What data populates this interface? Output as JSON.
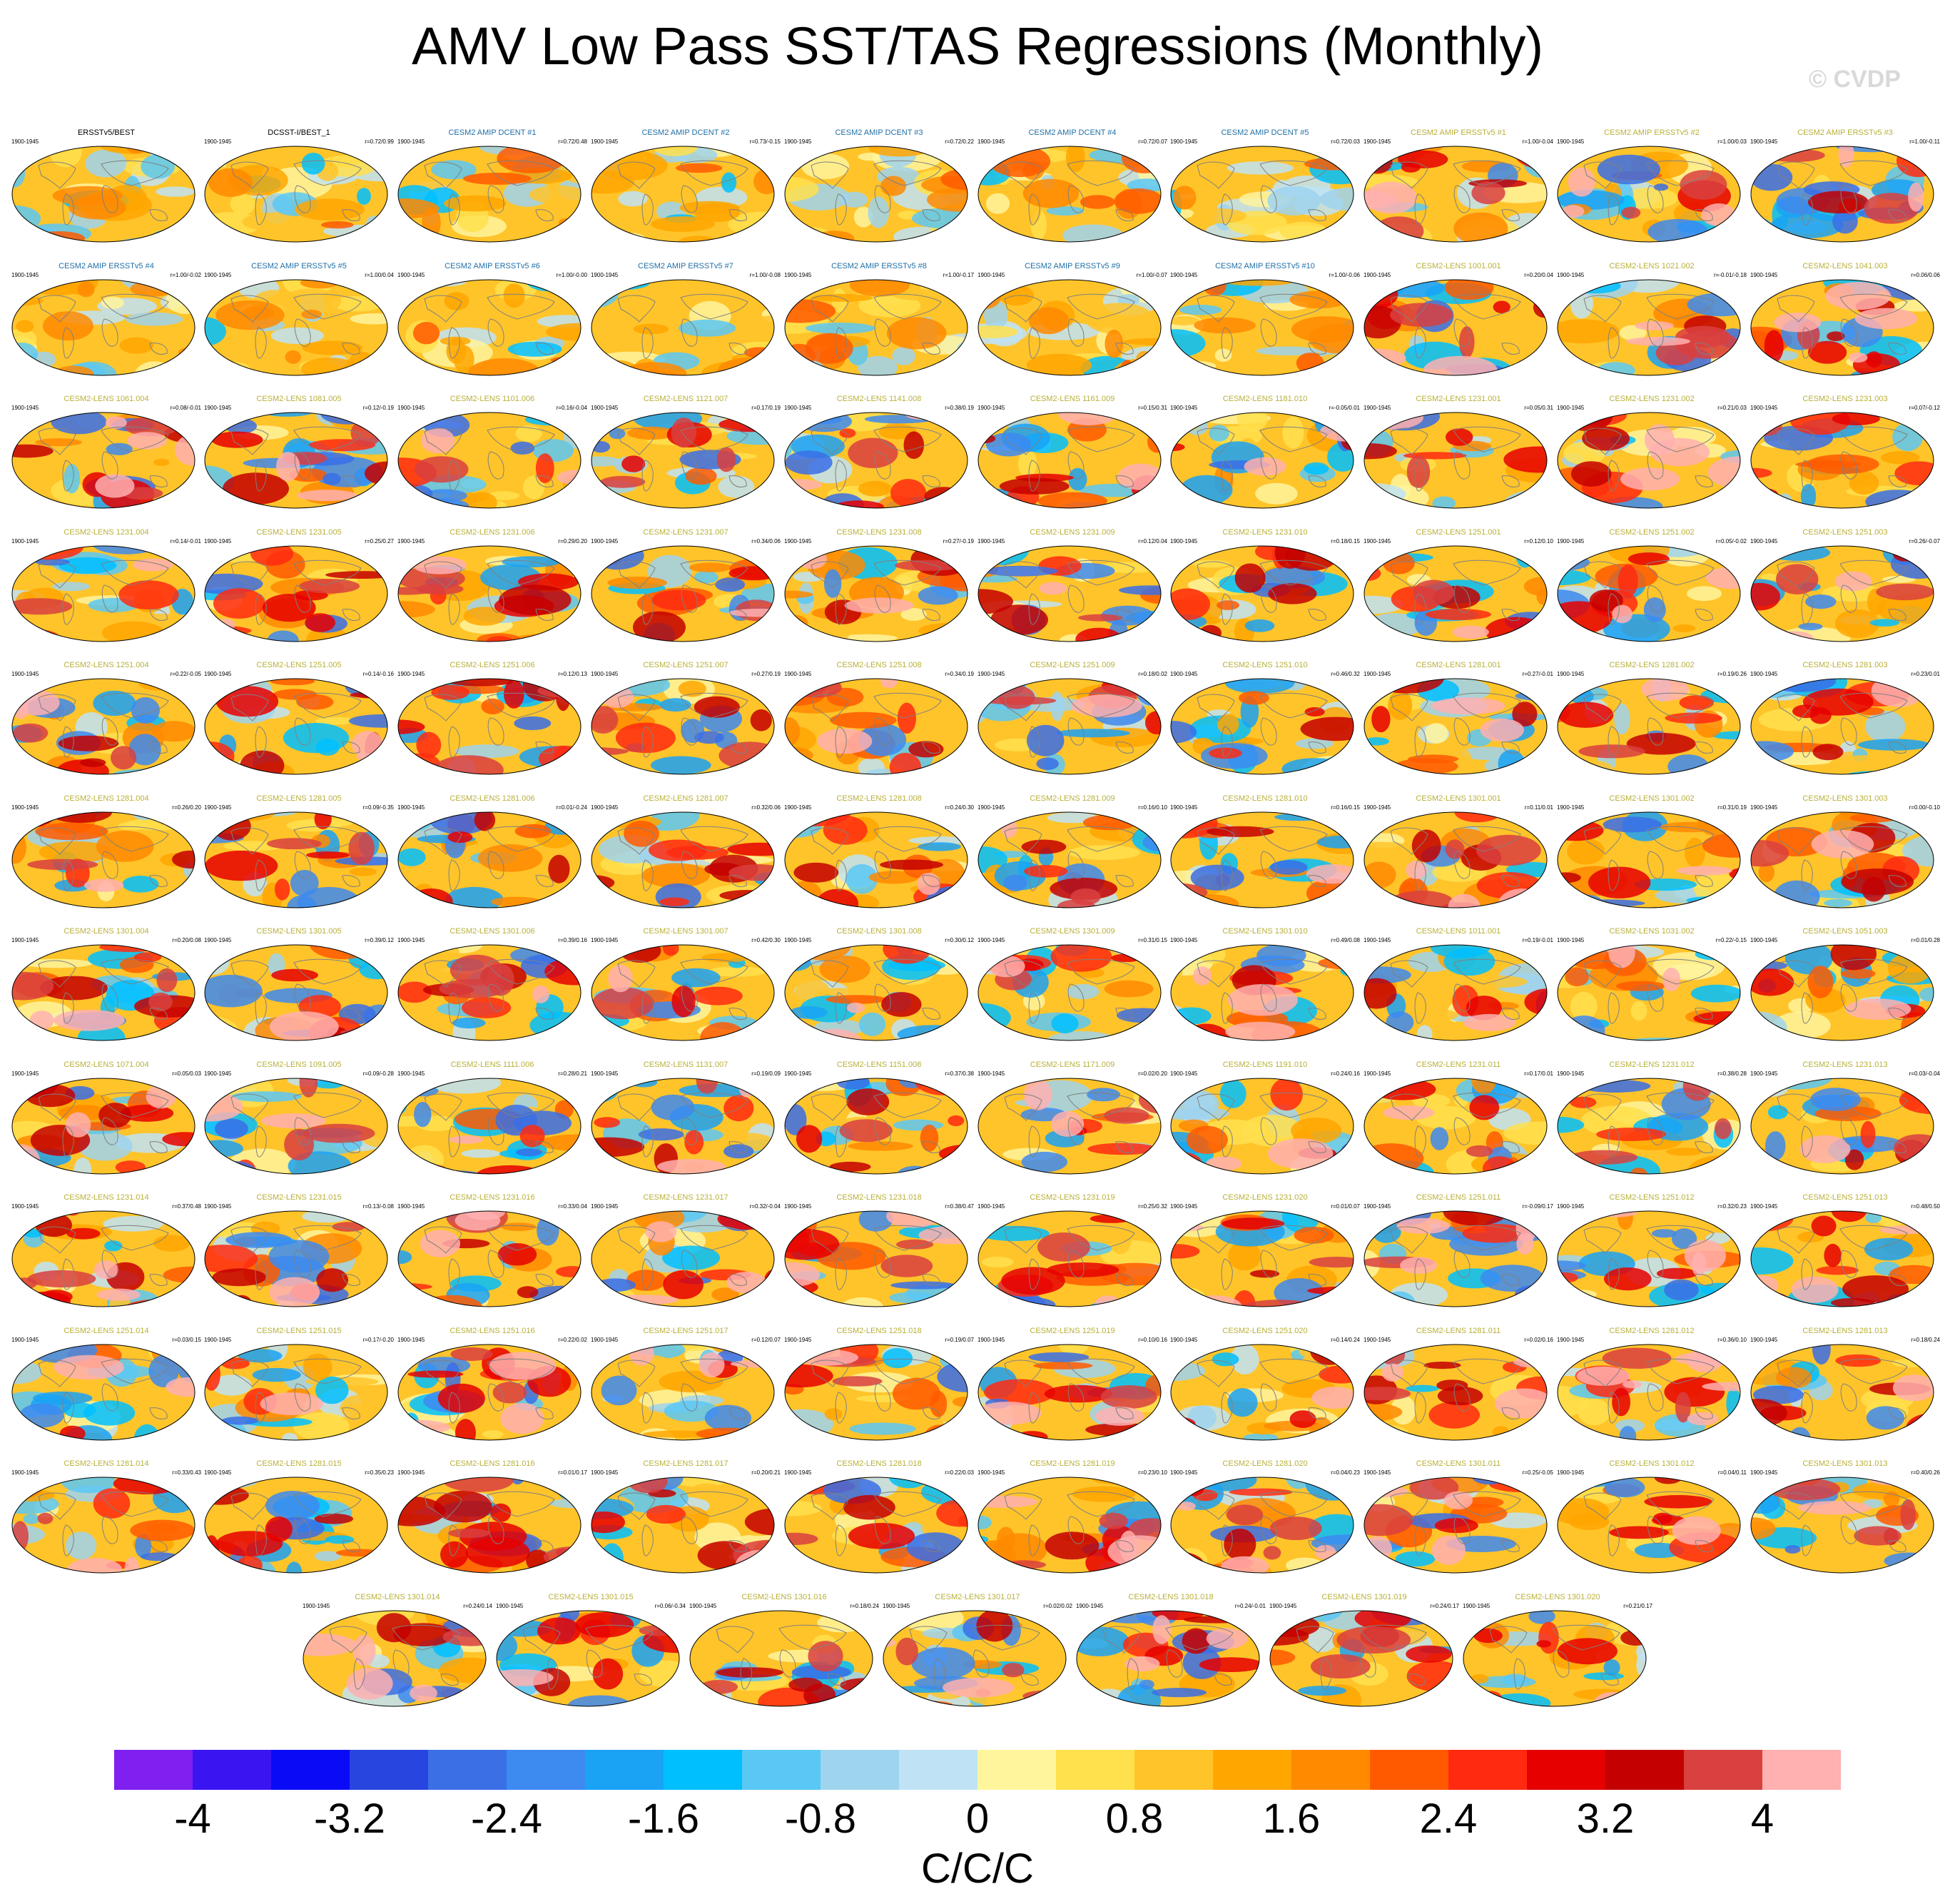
{
  "chart_data": {
    "type": "heatmap",
    "title": "AMV Low Pass SST/TAS Regressions (Monthly)",
    "watermark": "© CVDP",
    "units": "C/C/C",
    "colorbar": {
      "range": [
        -4.4,
        4.4
      ],
      "step": 0.4,
      "tick_labels": [
        "-4",
        "-3.2",
        "-2.4",
        "-1.6",
        "-0.8",
        "0",
        "0.8",
        "1.6",
        "2.4",
        "3.2",
        "4"
      ],
      "tick_values": [
        -4,
        -3.2,
        -2.4,
        -1.6,
        -0.8,
        0,
        0.8,
        1.6,
        2.4,
        3.2,
        4
      ],
      "colors": [
        "#7f1ff0",
        "#3b14f2",
        "#0a0af7",
        "#2845e0",
        "#3a6fe6",
        "#3d8af0",
        "#1aa2f5",
        "#00bfff",
        "#5ac8f5",
        "#9fd4ee",
        "#bfe3f5",
        "#fff59d",
        "#ffe14d",
        "#ffc42a",
        "#ffa600",
        "#ff8a00",
        "#ff5a00",
        "#ff2a10",
        "#e60000",
        "#c40000",
        "#d94040",
        "#ffb0b0"
      ]
    },
    "period": "1900-1945",
    "panel_colors": {
      "obs": "#000000",
      "amip": "#1f6fa6",
      "lens": "#b8b038"
    },
    "panels": [
      {
        "label": "ERSSTv5/BEST",
        "stat": "",
        "group": "obs"
      },
      {
        "label": "DCSST-I/BEST_1",
        "stat": "r=0.72/0.99",
        "group": "obs"
      },
      {
        "label": "CESM2 AMIP DCENT #1",
        "stat": "r=0.72/0.48",
        "group": "amip"
      },
      {
        "label": "CESM2 AMIP DCENT #2",
        "stat": "r=0.73/-0.15",
        "group": "amip"
      },
      {
        "label": "CESM2 AMIP DCENT #3",
        "stat": "r=0.72/0.22",
        "group": "amip"
      },
      {
        "label": "CESM2 AMIP DCENT #4",
        "stat": "r=0.72/0.07",
        "group": "amip"
      },
      {
        "label": "CESM2 AMIP DCENT #5",
        "stat": "r=0.72/0.03",
        "group": "amip"
      },
      {
        "label": "CESM2 AMIP ERSSTv5 #1",
        "stat": "r=1.00/-0.04",
        "group": "lens"
      },
      {
        "label": "CESM2 AMIP ERSSTv5 #2",
        "stat": "r=1.00/0.03",
        "group": "lens"
      },
      {
        "label": "CESM2 AMIP ERSSTv5 #3",
        "stat": "r=1.00/-0.11",
        "group": "lens"
      },
      {
        "label": "CESM2 AMIP ERSSTv5 #4",
        "stat": "r=1.00/-0.02",
        "group": "amip"
      },
      {
        "label": "CESM2 AMIP ERSSTv5 #5",
        "stat": "r=1.00/0.04",
        "group": "amip"
      },
      {
        "label": "CESM2 AMIP ERSSTv5 #6",
        "stat": "r=1.00/-0.00",
        "group": "amip"
      },
      {
        "label": "CESM2 AMIP ERSSTv5 #7",
        "stat": "r=1.00/-0.08",
        "group": "amip"
      },
      {
        "label": "CESM2 AMIP ERSSTv5 #8",
        "stat": "r=1.00/-0.17",
        "group": "amip"
      },
      {
        "label": "CESM2 AMIP ERSSTv5 #9",
        "stat": "r=1.00/-0.07",
        "group": "amip"
      },
      {
        "label": "CESM2 AMIP ERSSTv5 #10",
        "stat": "r=1.00/-0.06",
        "group": "amip"
      },
      {
        "label": "CESM2-LENS 1001.001",
        "stat": "r=0.20/0.04",
        "group": "lens"
      },
      {
        "label": "CESM2-LENS 1021.002",
        "stat": "r=-0.01/-0.18",
        "group": "lens"
      },
      {
        "label": "CESM2-LENS 1041.003",
        "stat": "r=0.06/0.06",
        "group": "lens"
      },
      {
        "label": "CESM2-LENS 1061.004",
        "stat": "r=0.08/-0.01",
        "group": "lens"
      },
      {
        "label": "CESM2-LENS 1081.005",
        "stat": "r=0.12/-0.19",
        "group": "lens"
      },
      {
        "label": "CESM2-LENS 1101.006",
        "stat": "r=0.16/-0.04",
        "group": "lens"
      },
      {
        "label": "CESM2-LENS 1121.007",
        "stat": "r=0.17/0.19",
        "group": "lens"
      },
      {
        "label": "CESM2-LENS 1141.008",
        "stat": "r=0.38/0.19",
        "group": "lens"
      },
      {
        "label": "CESM2-LENS 1161.009",
        "stat": "r=0.15/0.31",
        "group": "lens"
      },
      {
        "label": "CESM2-LENS 1181.010",
        "stat": "r=-0.05/0.01",
        "group": "lens"
      },
      {
        "label": "CESM2-LENS 1231.001",
        "stat": "r=0.05/0.31",
        "group": "lens"
      },
      {
        "label": "CESM2-LENS 1231.002",
        "stat": "r=0.21/0.03",
        "group": "lens"
      },
      {
        "label": "CESM2-LENS 1231.003",
        "stat": "r=0.07/-0.12",
        "group": "lens"
      },
      {
        "label": "CESM2-LENS 1231.004",
        "stat": "r=0.14/-0.01",
        "group": "lens"
      },
      {
        "label": "CESM2-LENS 1231.005",
        "stat": "r=0.25/0.27",
        "group": "lens"
      },
      {
        "label": "CESM2-LENS 1231.006",
        "stat": "r=0.29/0.20",
        "group": "lens"
      },
      {
        "label": "CESM2-LENS 1231.007",
        "stat": "r=0.34/0.06",
        "group": "lens"
      },
      {
        "label": "CESM2-LENS 1231.008",
        "stat": "r=0.27/-0.19",
        "group": "lens"
      },
      {
        "label": "CESM2-LENS 1231.009",
        "stat": "r=0.12/0.04",
        "group": "lens"
      },
      {
        "label": "CESM2-LENS 1231.010",
        "stat": "r=0.18/0.15",
        "group": "lens"
      },
      {
        "label": "CESM2-LENS 1251.001",
        "stat": "r=0.12/0.10",
        "group": "lens"
      },
      {
        "label": "CESM2-LENS 1251.002",
        "stat": "r=0.05/-0.02",
        "group": "lens"
      },
      {
        "label": "CESM2-LENS 1251.003",
        "stat": "r=0.26/-0.07",
        "group": "lens"
      },
      {
        "label": "CESM2-LENS 1251.004",
        "stat": "r=0.22/-0.05",
        "group": "lens"
      },
      {
        "label": "CESM2-LENS 1251.005",
        "stat": "r=0.14/-0.16",
        "group": "lens"
      },
      {
        "label": "CESM2-LENS 1251.006",
        "stat": "r=0.12/0.13",
        "group": "lens"
      },
      {
        "label": "CESM2-LENS 1251.007",
        "stat": "r=0.27/0.19",
        "group": "lens"
      },
      {
        "label": "CESM2-LENS 1251.008",
        "stat": "r=0.34/0.19",
        "group": "lens"
      },
      {
        "label": "CESM2-LENS 1251.009",
        "stat": "r=0.18/0.02",
        "group": "lens"
      },
      {
        "label": "CESM2-LENS 1251.010",
        "stat": "r=0.46/0.32",
        "group": "lens"
      },
      {
        "label": "CESM2-LENS 1281.001",
        "stat": "r=0.27/-0.01",
        "group": "lens"
      },
      {
        "label": "CESM2-LENS 1281.002",
        "stat": "r=0.19/0.26",
        "group": "lens"
      },
      {
        "label": "CESM2-LENS 1281.003",
        "stat": "r=0.23/0.01",
        "group": "lens"
      },
      {
        "label": "CESM2-LENS 1281.004",
        "stat": "r=0.26/0.20",
        "group": "lens"
      },
      {
        "label": "CESM2-LENS 1281.005",
        "stat": "r=0.09/-0.35",
        "group": "lens"
      },
      {
        "label": "CESM2-LENS 1281.006",
        "stat": "r=0.01/-0.24",
        "group": "lens"
      },
      {
        "label": "CESM2-LENS 1281.007",
        "stat": "r=0.32/0.06",
        "group": "lens"
      },
      {
        "label": "CESM2-LENS 1281.008",
        "stat": "r=0.24/0.30",
        "group": "lens"
      },
      {
        "label": "CESM2-LENS 1281.009",
        "stat": "r=0.16/0.10",
        "group": "lens"
      },
      {
        "label": "CESM2-LENS 1281.010",
        "stat": "r=0.16/0.15",
        "group": "lens"
      },
      {
        "label": "CESM2-LENS 1301.001",
        "stat": "r=0.11/0.01",
        "group": "lens"
      },
      {
        "label": "CESM2-LENS 1301.002",
        "stat": "r=0.31/0.19",
        "group": "lens"
      },
      {
        "label": "CESM2-LENS 1301.003",
        "stat": "r=0.00/-0.10",
        "group": "lens"
      },
      {
        "label": "CESM2-LENS 1301.004",
        "stat": "r=0.20/0.08",
        "group": "lens"
      },
      {
        "label": "CESM2-LENS 1301.005",
        "stat": "r=0.39/0.12",
        "group": "lens"
      },
      {
        "label": "CESM2-LENS 1301.006",
        "stat": "r=0.39/0.16",
        "group": "lens"
      },
      {
        "label": "CESM2-LENS 1301.007",
        "stat": "r=0.42/0.30",
        "group": "lens"
      },
      {
        "label": "CESM2-LENS 1301.008",
        "stat": "r=0.30/0.12",
        "group": "lens"
      },
      {
        "label": "CESM2-LENS 1301.009",
        "stat": "r=0.31/0.15",
        "group": "lens"
      },
      {
        "label": "CESM2-LENS 1301.010",
        "stat": "r=0.49/0.08",
        "group": "lens"
      },
      {
        "label": "CESM2-LENS 1011.001",
        "stat": "r=0.19/-0.01",
        "group": "lens"
      },
      {
        "label": "CESM2-LENS 1031.002",
        "stat": "r=0.22/-0.15",
        "group": "lens"
      },
      {
        "label": "CESM2-LENS 1051.003",
        "stat": "r=0.01/0.28",
        "group": "lens"
      },
      {
        "label": "CESM2-LENS 1071.004",
        "stat": "r=0.05/0.03",
        "group": "lens"
      },
      {
        "label": "CESM2-LENS 1091.005",
        "stat": "r=0.09/-0.28",
        "group": "lens"
      },
      {
        "label": "CESM2-LENS 1111.006",
        "stat": "r=0.28/0.21",
        "group": "lens"
      },
      {
        "label": "CESM2-LENS 1131.007",
        "stat": "r=0.19/0.09",
        "group": "lens"
      },
      {
        "label": "CESM2-LENS 1151.008",
        "stat": "r=0.37/0.38",
        "group": "lens"
      },
      {
        "label": "CESM2-LENS 1171.009",
        "stat": "r=0.02/0.20",
        "group": "lens"
      },
      {
        "label": "CESM2-LENS 1191.010",
        "stat": "r=0.24/0.16",
        "group": "lens"
      },
      {
        "label": "CESM2-LENS 1231.011",
        "stat": "r=0.17/0.01",
        "group": "lens"
      },
      {
        "label": "CESM2-LENS 1231.012",
        "stat": "r=0.38/0.28",
        "group": "lens"
      },
      {
        "label": "CESM2-LENS 1231.013",
        "stat": "r=0.03/-0.04",
        "group": "lens"
      },
      {
        "label": "CESM2-LENS 1231.014",
        "stat": "r=0.37/0.48",
        "group": "lens"
      },
      {
        "label": "CESM2-LENS 1231.015",
        "stat": "r=0.13/-0.08",
        "group": "lens"
      },
      {
        "label": "CESM2-LENS 1231.016",
        "stat": "r=0.33/0.04",
        "group": "lens"
      },
      {
        "label": "CESM2-LENS 1231.017",
        "stat": "r=0.32/-0.04",
        "group": "lens"
      },
      {
        "label": "CESM2-LENS 1231.018",
        "stat": "r=0.38/0.47",
        "group": "lens"
      },
      {
        "label": "CESM2-LENS 1231.019",
        "stat": "r=0.25/0.32",
        "group": "lens"
      },
      {
        "label": "CESM2-LENS 1231.020",
        "stat": "r=0.01/0.07",
        "group": "lens"
      },
      {
        "label": "CESM2-LENS 1251.011",
        "stat": "r=-0.09/0.17",
        "group": "lens"
      },
      {
        "label": "CESM2-LENS 1251.012",
        "stat": "r=0.32/0.23",
        "group": "lens"
      },
      {
        "label": "CESM2-LENS 1251.013",
        "stat": "r=0.48/0.50",
        "group": "lens"
      },
      {
        "label": "CESM2-LENS 1251.014",
        "stat": "r=0.03/0.15",
        "group": "lens"
      },
      {
        "label": "CESM2-LENS 1251.015",
        "stat": "r=0.17/-0.20",
        "group": "lens"
      },
      {
        "label": "CESM2-LENS 1251.016",
        "stat": "r=0.22/0.02",
        "group": "lens"
      },
      {
        "label": "CESM2-LENS 1251.017",
        "stat": "r=0.12/0.07",
        "group": "lens"
      },
      {
        "label": "CESM2-LENS 1251.018",
        "stat": "r=0.19/0.07",
        "group": "lens"
      },
      {
        "label": "CESM2-LENS 1251.019",
        "stat": "r=0.10/0.16",
        "group": "lens"
      },
      {
        "label": "CESM2-LENS 1251.020",
        "stat": "r=0.14/0.24",
        "group": "lens"
      },
      {
        "label": "CESM2-LENS 1281.011",
        "stat": "r=0.02/0.16",
        "group": "lens"
      },
      {
        "label": "CESM2-LENS 1281.012",
        "stat": "r=0.36/0.10",
        "group": "lens"
      },
      {
        "label": "CESM2-LENS 1281.013",
        "stat": "r=0.18/0.24",
        "group": "lens"
      },
      {
        "label": "CESM2-LENS 1281.014",
        "stat": "r=0.33/0.43",
        "group": "lens"
      },
      {
        "label": "CESM2-LENS 1281.015",
        "stat": "r=0.35/0.23",
        "group": "lens"
      },
      {
        "label": "CESM2-LENS 1281.016",
        "stat": "r=0.01/0.17",
        "group": "lens"
      },
      {
        "label": "CESM2-LENS 1281.017",
        "stat": "r=0.20/0.21",
        "group": "lens"
      },
      {
        "label": "CESM2-LENS 1281.018",
        "stat": "r=0.22/0.03",
        "group": "lens"
      },
      {
        "label": "CESM2-LENS 1281.019",
        "stat": "r=0.23/0.10",
        "group": "lens"
      },
      {
        "label": "CESM2-LENS 1281.020",
        "stat": "r=0.04/0.23",
        "group": "lens"
      },
      {
        "label": "CESM2-LENS 1301.011",
        "stat": "r=0.25/-0.05",
        "group": "lens"
      },
      {
        "label": "CESM2-LENS 1301.012",
        "stat": "r=0.04/0.11",
        "group": "lens"
      },
      {
        "label": "CESM2-LENS 1301.013",
        "stat": "r=0.40/0.26",
        "group": "lens"
      },
      {
        "label": "CESM2-LENS 1301.014",
        "stat": "r=0.24/0.14",
        "group": "lens"
      },
      {
        "label": "CESM2-LENS 1301.015",
        "stat": "r=0.06/-0.34",
        "group": "lens"
      },
      {
        "label": "CESM2-LENS 1301.016",
        "stat": "r=0.18/0.24",
        "group": "lens"
      },
      {
        "label": "CESM2-LENS 1301.017",
        "stat": "r=0.02/0.02",
        "group": "lens"
      },
      {
        "label": "CESM2-LENS 1301.018",
        "stat": "r=0.24/-0.01",
        "group": "lens"
      },
      {
        "label": "CESM2-LENS 1301.019",
        "stat": "r=0.24/0.17",
        "group": "lens"
      },
      {
        "label": "CESM2-LENS 1301.020",
        "stat": "r=0.21/0.17",
        "group": "lens"
      }
    ]
  }
}
